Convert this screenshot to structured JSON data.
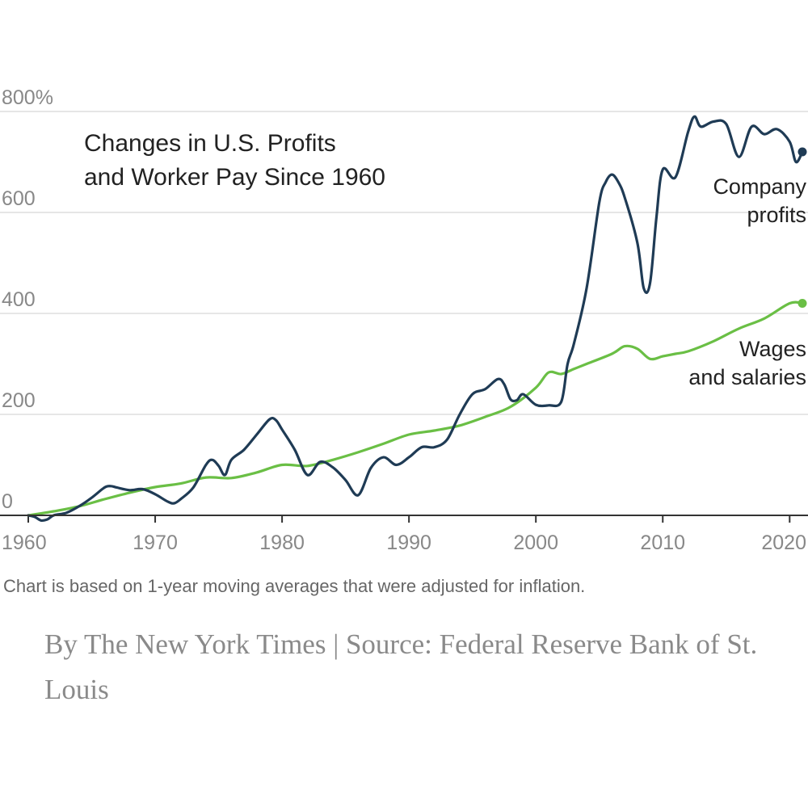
{
  "chart_data": {
    "type": "line",
    "title_lines": [
      "Changes in U.S. Profits",
      "and Worker Pay Since 1960"
    ],
    "xlabel": "",
    "ylabel": "",
    "xlim": [
      1960,
      2021
    ],
    "ylim": [
      0,
      800
    ],
    "y_ticks": [
      0,
      200,
      400,
      600,
      800
    ],
    "y_tick_labels": [
      "0",
      "200",
      "400",
      "600",
      "800%"
    ],
    "x_ticks": [
      1960,
      1970,
      1980,
      1990,
      2000,
      2010,
      2020
    ],
    "x_tick_labels": [
      "1960",
      "1970",
      "1980",
      "1990",
      "2000",
      "2010",
      "2020"
    ],
    "grid": true,
    "series": [
      {
        "name": "Company profits",
        "label_lines": [
          "Company",
          "profits"
        ],
        "color": "#1f3b55",
        "x": [
          1960,
          1960.5,
          1961,
          1961.5,
          1962,
          1963,
          1964,
          1965,
          1966,
          1966.5,
          1967,
          1968,
          1969,
          1970,
          1971,
          1971.5,
          1972,
          1973,
          1974,
          1974.5,
          1975,
          1975.5,
          1976,
          1977,
          1978,
          1979,
          1979.5,
          1980,
          1981,
          1982,
          1983,
          1984,
          1985,
          1986,
          1987,
          1988,
          1989,
          1990,
          1991,
          1992,
          1993,
          1994,
          1995,
          1996,
          1997,
          1997.5,
          1998,
          1998.5,
          1999,
          2000,
          2001,
          2002,
          2002.5,
          2003,
          2004,
          2005,
          2005.5,
          2006,
          2006.5,
          2007,
          2008,
          2008.5,
          2009,
          2009.5,
          2010,
          2011,
          2012,
          2012.5,
          2013,
          2014,
          2015,
          2016,
          2017,
          2018,
          2019,
          2020,
          2020.5,
          2021
        ],
        "values": [
          0,
          -3,
          -10,
          -8,
          0,
          5,
          18,
          35,
          55,
          58,
          55,
          50,
          52,
          42,
          27,
          24,
          32,
          55,
          100,
          110,
          98,
          80,
          110,
          130,
          160,
          190,
          189,
          170,
          130,
          80,
          106,
          95,
          70,
          40,
          94,
          115,
          100,
          115,
          135,
          135,
          150,
          200,
          240,
          250,
          270,
          260,
          230,
          228,
          240,
          219,
          218,
          225,
          300,
          340,
          450,
          620,
          660,
          675,
          660,
          630,
          540,
          450,
          460,
          590,
          685,
          670,
          760,
          790,
          770,
          780,
          775,
          710,
          770,
          755,
          765,
          740,
          700,
          720
        ]
      },
      {
        "name": "Wages and salaries",
        "label_lines": [
          "Wages",
          "and salaries"
        ],
        "color": "#6abf45",
        "x": [
          1960,
          1962,
          1964,
          1966,
          1968,
          1970,
          1972,
          1974,
          1976,
          1978,
          1980,
          1982,
          1984,
          1986,
          1988,
          1990,
          1992,
          1994,
          1996,
          1998,
          2000,
          2001,
          2002,
          2003,
          2004,
          2006,
          2007,
          2008,
          2009,
          2010,
          2011,
          2012,
          2014,
          2016,
          2018,
          2020,
          2021
        ],
        "values": [
          0,
          8,
          18,
          32,
          45,
          56,
          63,
          75,
          74,
          85,
          100,
          98,
          110,
          125,
          142,
          160,
          168,
          178,
          195,
          215,
          253,
          283,
          280,
          290,
          300,
          320,
          335,
          330,
          310,
          315,
          320,
          325,
          345,
          370,
          390,
          420,
          420
        ]
      }
    ],
    "footnote": "Chart is based on 1-year moving averages that were adjusted for inflation."
  },
  "credit": "By The New York Times | Source: Federal Reserve Bank of St. Louis"
}
